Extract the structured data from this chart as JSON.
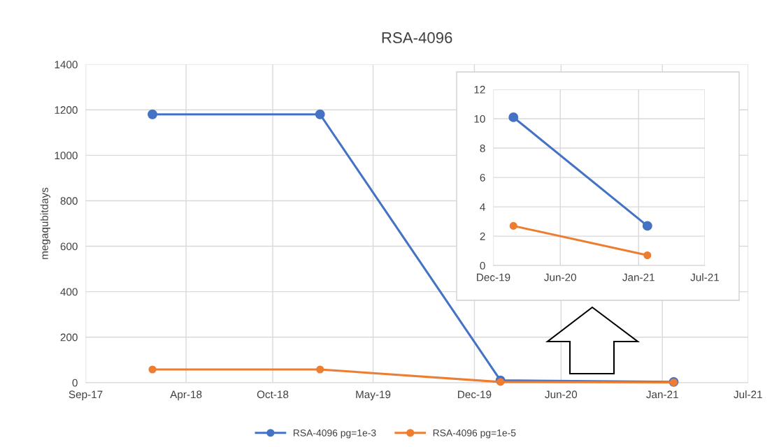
{
  "chart_data": [
    {
      "type": "line",
      "title": "RSA-4096",
      "ylabel": "megaqubitdays",
      "x": [
        "2018-01-20",
        "2019-01-09",
        "2020-01-25",
        "2021-01-25"
      ],
      "series": [
        {
          "name": "RSA-4096 pg=1e-3",
          "color": "#4472c4",
          "values": [
            1180,
            1180,
            10,
            3
          ]
        },
        {
          "name": "RSA-4096 pg=1e-5",
          "color": "#ed7d31",
          "values": [
            58,
            58,
            3,
            1
          ]
        }
      ],
      "xlim": [
        "2017-09-01",
        "2021-07-01"
      ],
      "xticks": [
        {
          "value": "2017-09-01",
          "label": "Sep-17"
        },
        {
          "value": "2018-04-01",
          "label": "Apr-18"
        },
        {
          "value": "2018-10-01",
          "label": "Oct-18"
        },
        {
          "value": "2019-05-01",
          "label": "May-19"
        },
        {
          "value": "2019-12-01",
          "label": "Dec-19"
        },
        {
          "value": "2020-06-01",
          "label": "Jun-20"
        },
        {
          "value": "2021-01-01",
          "label": "Jan-21"
        },
        {
          "value": "2021-07-01",
          "label": "Jul-21"
        }
      ],
      "ylim": [
        0,
        1400
      ],
      "yticks": [
        0,
        200,
        400,
        600,
        800,
        1000,
        1200,
        1400
      ],
      "grid": true,
      "legend": "bottom",
      "marker": "circle",
      "line_style": "solid"
    },
    {
      "type": "line",
      "x": [
        "2020-01-25",
        "2021-01-25"
      ],
      "series": [
        {
          "color": "#4472c4",
          "values": [
            10.1,
            2.7
          ]
        },
        {
          "color": "#ed7d31",
          "values": [
            2.7,
            0.7
          ]
        }
      ],
      "xlim": [
        "2019-12-01",
        "2021-07-01"
      ],
      "xticks": [
        {
          "value": "2019-12-01",
          "label": "Dec-19"
        },
        {
          "value": "2020-06-01",
          "label": "Jun-20"
        },
        {
          "value": "2021-01-01",
          "label": "Jan-21"
        },
        {
          "value": "2021-07-01",
          "label": "Jul-21"
        }
      ],
      "ylim": [
        0,
        12
      ],
      "yticks": [
        0,
        2,
        4,
        6,
        8,
        10,
        12
      ],
      "grid": true,
      "marker": "circle",
      "line_style": "solid"
    }
  ]
}
